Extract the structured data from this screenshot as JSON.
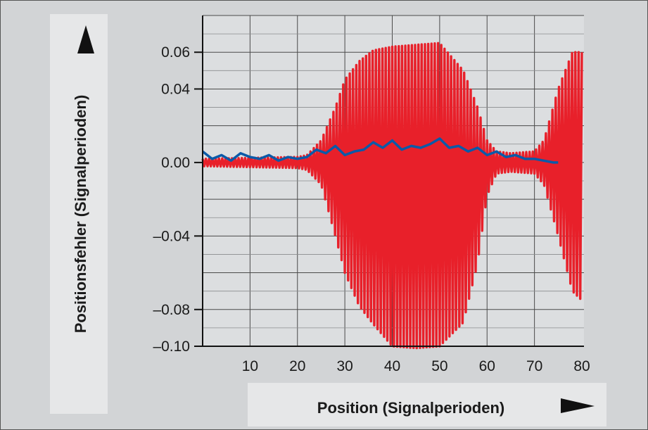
{
  "chart_data": {
    "type": "line",
    "xlabel": "Position (Signalperioden)",
    "ylabel": "Positionsfehler (Signalperioden)",
    "xlim": [
      0,
      80
    ],
    "ylim": [
      -0.1,
      0.08
    ],
    "x_ticks": [
      10,
      20,
      30,
      40,
      50,
      60,
      70,
      80
    ],
    "y_ticks": [
      0.06,
      0.04,
      0.0,
      -0.04,
      -0.08,
      -0.1
    ],
    "y_tick_labels": [
      "0.06",
      "0.04",
      "0.00",
      "–0.04",
      "–0.08",
      "–0.10"
    ],
    "grid": true,
    "series": [
      {
        "color": "#e8202a",
        "style": "dense oscillation envelope",
        "envelope_x": [
          0,
          20,
          22,
          25,
          28,
          30,
          33,
          36,
          40,
          45,
          50,
          55,
          58,
          60,
          62,
          65,
          70,
          72,
          75,
          78,
          80
        ],
        "envelope_upper": [
          0.002,
          0.003,
          0.004,
          0.012,
          0.03,
          0.045,
          0.055,
          0.061,
          0.063,
          0.064,
          0.065,
          0.05,
          0.03,
          0.012,
          0.006,
          0.005,
          0.006,
          0.012,
          0.04,
          0.06,
          0.06
        ],
        "envelope_lower": [
          -0.002,
          -0.003,
          -0.004,
          -0.012,
          -0.04,
          -0.06,
          -0.078,
          -0.088,
          -0.1,
          -0.101,
          -0.1,
          -0.087,
          -0.055,
          -0.018,
          -0.006,
          -0.005,
          -0.006,
          -0.012,
          -0.04,
          -0.07,
          -0.075
        ],
        "cycles": 116
      },
      {
        "color": "#0a5aa8",
        "style": "line",
        "x": [
          0,
          2,
          4,
          6,
          8,
          10,
          12,
          14,
          16,
          18,
          20,
          22,
          24,
          26,
          28,
          30,
          32,
          34,
          36,
          38,
          40,
          42,
          44,
          46,
          48,
          50,
          52,
          54,
          56,
          58,
          60,
          62,
          64,
          66,
          68,
          70,
          72,
          74,
          75
        ],
        "y": [
          0.006,
          0.002,
          0.004,
          0.001,
          0.005,
          0.003,
          0.002,
          0.004,
          0.001,
          0.003,
          0.002,
          0.003,
          0.007,
          0.005,
          0.009,
          0.004,
          0.006,
          0.007,
          0.011,
          0.008,
          0.012,
          0.007,
          0.009,
          0.008,
          0.01,
          0.013,
          0.008,
          0.009,
          0.006,
          0.008,
          0.004,
          0.006,
          0.003,
          0.004,
          0.002,
          0.002,
          0.001,
          0.0,
          0.0
        ]
      }
    ]
  }
}
